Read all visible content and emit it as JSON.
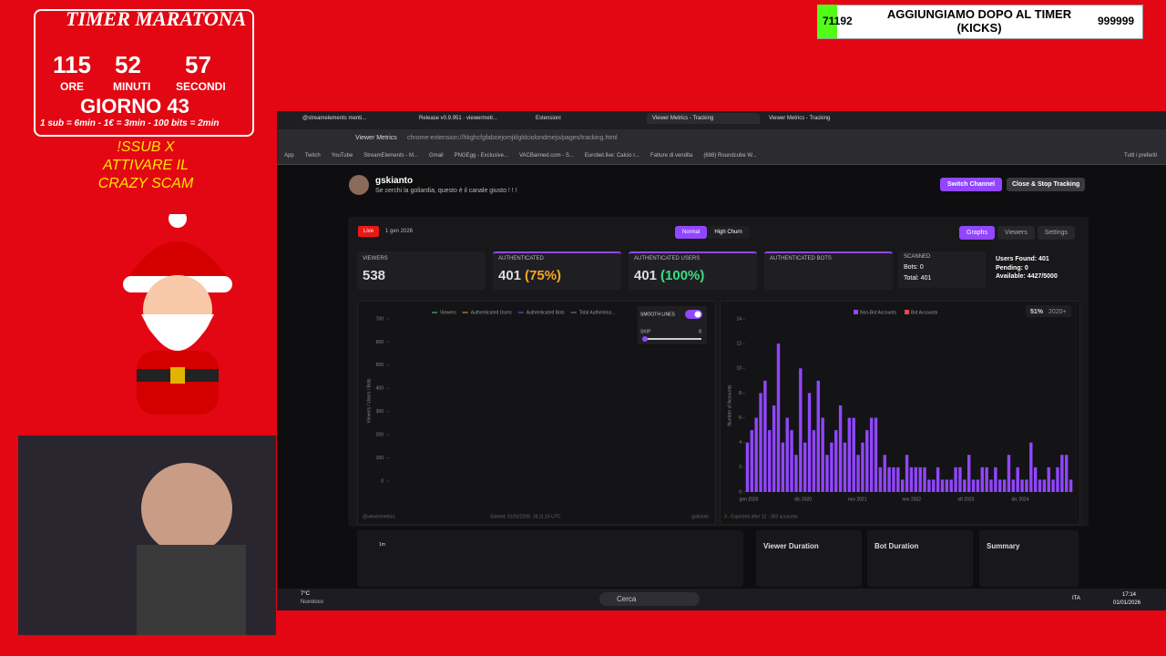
{
  "overlay": {
    "timer_title": "TIMER MARATONA",
    "hours": "115",
    "minutes": "52",
    "seconds": "57",
    "hours_label": "ORE",
    "minutes_label": "MINUTI",
    "seconds_label": "SECONDI",
    "day": "GIORNO 43",
    "rates": "1 sub = 6min - 1€ = 3min - 100 bits = 2min",
    "command": "!SSUB X ATTIVARE IL CRAZY SCAM"
  },
  "goal": {
    "count": "71192",
    "text": "AGGIUNGIAMO DOPO AL TIMER (KICKS)",
    "target": "999999"
  },
  "browser": {
    "tabs": [
      "@streamelements menti...",
      "Release v0.9.951 · viewermetr...",
      "Estensioni",
      "Viewer Metrics - Tracking",
      "Viewer Metrics - Tracking"
    ],
    "url_chip": "Viewer Metrics",
    "url": "chrome-extension://hkghcfgfaboejomjklgldciolondmejo/pages/tracking.html",
    "bookmarks": [
      "App",
      "Twitch",
      "YouTube",
      "StreamElements - M...",
      "Gmail",
      "PNGEgg - Exclusive...",
      "VACBanned.com - S...",
      "Eurobet.live: Calcio r...",
      "Fatture di vendita",
      "(688) Roundcube W..."
    ],
    "all_bookmarks": "Tutti i preferiti"
  },
  "channel": {
    "name": "gskianto",
    "bio": "Se cerchi la goliardia, questo è il canale giusto ! ! !",
    "switch": "Switch Channel",
    "close": "Close & Stop Tracking"
  },
  "toolbar": {
    "live": "Live",
    "date": "1 gen 2026",
    "modes": [
      "Normal",
      "High Churn"
    ],
    "views": [
      "Graphs",
      "Viewers",
      "Settings"
    ]
  },
  "stats": [
    {
      "label": "VIEWERS",
      "value": "538"
    },
    {
      "label": "AUTHENTICATED",
      "value": "401",
      "pct": "(75%)",
      "pct_color": "#f5a623"
    },
    {
      "label": "AUTHENTICATED USERS",
      "value": "401",
      "pct": "(100%)",
      "pct_color": "#3ddc84"
    },
    {
      "label": "AUTHENTICATED BOTS",
      "value": ""
    }
  ],
  "scanned": {
    "label": "SCANNED",
    "bots": "Bots: 0",
    "total": "Total: 401"
  },
  "users": {
    "found": "Users Found: 401",
    "pending": "Pending: 0",
    "available": "Available: 4427/5000"
  },
  "viewer_chart": {
    "type": "line",
    "legend": [
      {
        "name": "Viewers",
        "color": "#3ddc84"
      },
      {
        "name": "Authenticated Users",
        "color": "#f5a623"
      },
      {
        "name": "Authenticated Bots",
        "color": "#9146ff"
      },
      {
        "name": "Total Authentica...",
        "color": "#888888"
      }
    ],
    "y_label": "Viewers / Users / Bots",
    "ylim": [
      0,
      700
    ],
    "yticks": [
      0,
      100,
      200,
      300,
      400,
      500,
      600,
      700
    ],
    "smooth": "SMOOTH LINES",
    "skip": "SKIP",
    "skip_value": "0",
    "footer_left": "@viewermetrics",
    "footer_mid": "Started: 01/01/2026, 16:11:15 UTC",
    "footer_right": "gskianto"
  },
  "account_chart": {
    "type": "bar",
    "legend": [
      {
        "name": "Non-Bot Accounts",
        "color": "#9146ff"
      },
      {
        "name": "Bot Accounts",
        "color": "#e5484d"
      }
    ],
    "badge_pct": "51%",
    "badge_year": "2020+",
    "y_label": "Number of Accounts",
    "ylim": [
      0,
      14
    ],
    "yticks": [
      0,
      2,
      4,
      6,
      8,
      10,
      12,
      14
    ],
    "x_labels": [
      "gen 2020",
      "dic 2020",
      "nov 2021",
      "nov 2022",
      "ott 2023",
      "dic 2024"
    ],
    "values": [
      4,
      5,
      6,
      8,
      9,
      5,
      7,
      12,
      4,
      6,
      5,
      3,
      10,
      4,
      8,
      5,
      9,
      6,
      3,
      4,
      5,
      7,
      4,
      6,
      6,
      3,
      4,
      5,
      6,
      6,
      2,
      3,
      2,
      2,
      2,
      1,
      3,
      2,
      2,
      2,
      2,
      1,
      1,
      2,
      1,
      1,
      1,
      2,
      2,
      1,
      3,
      1,
      1,
      2,
      2,
      1,
      2,
      1,
      1,
      3,
      1,
      2,
      1,
      1,
      4,
      2,
      1,
      1,
      2,
      1,
      2,
      3,
      3,
      1
    ],
    "footer": "3 - Expected after 12 - 303 accounts"
  },
  "panels": [
    "1m",
    "Viewer Duration",
    "Bot Duration",
    "Summary"
  ],
  "taskbar": {
    "temp": "7°C",
    "weather": "Nuvoloso",
    "search": "Cerca",
    "lang": "ITA",
    "time": "17:14",
    "date": "01/01/2026"
  }
}
